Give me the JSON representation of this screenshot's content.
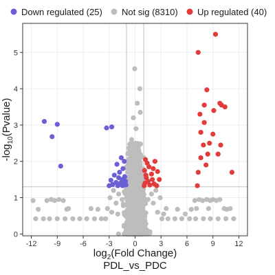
{
  "chart_data": {
    "type": "scatter",
    "title": "PDL_vs_PDC",
    "xlabel": {
      "base": "log",
      "sub": "2",
      "rest": "(Fold Change)"
    },
    "ylabel": {
      "prefix": "-log",
      "sub": "10",
      "rest": "(Pvalue)"
    },
    "xlim": [
      -13,
      13
    ],
    "ylim": [
      -0.05,
      5.8
    ],
    "xticks": [
      -12,
      -9,
      -6,
      -3,
      0,
      3,
      6,
      9,
      12
    ],
    "yticks": [
      0,
      1,
      2,
      3,
      4,
      5
    ],
    "thresholds": {
      "x": [
        -1,
        1
      ],
      "y": 1.3
    },
    "grid": true,
    "legend_position": "top",
    "colors": {
      "down": "#6b5fd6",
      "notsig": "#bdbdbd",
      "up": "#e23b3b",
      "threshold": "#c8c8c8",
      "grid": "#ececec"
    },
    "legend": [
      {
        "key": "down",
        "label": "Down regulated (25)"
      },
      {
        "key": "notsig",
        "label": "Not sig (8310)"
      },
      {
        "key": "up",
        "label": "Up regulated (40)"
      }
    ],
    "series": [
      {
        "key": "down",
        "name": "Down regulated (25)",
        "points": [
          [
            -10.5,
            3.1
          ],
          [
            -9.0,
            3.02
          ],
          [
            -9.6,
            2.68
          ],
          [
            -8.6,
            1.87
          ],
          [
            -3.3,
            2.92
          ],
          [
            -2.7,
            2.95
          ],
          [
            -1.6,
            2.1
          ],
          [
            -2.1,
            1.92
          ],
          [
            -1.4,
            1.8
          ],
          [
            -1.8,
            1.7
          ],
          [
            -2.4,
            1.62
          ],
          [
            -1.2,
            1.58
          ],
          [
            -1.9,
            1.55
          ],
          [
            -1.5,
            1.5
          ],
          [
            -2.8,
            1.48
          ],
          [
            -1.1,
            1.45
          ],
          [
            -2.2,
            1.42
          ],
          [
            -1.7,
            1.4
          ],
          [
            -1.3,
            1.38
          ],
          [
            -2.6,
            1.36
          ],
          [
            -1.05,
            1.35
          ],
          [
            -2.0,
            1.33
          ],
          [
            -1.45,
            1.33
          ],
          [
            -3.0,
            1.33
          ],
          [
            -1.25,
            2.0
          ]
        ]
      },
      {
        "key": "up",
        "name": "Up regulated (40)",
        "points": [
          [
            9.3,
            5.5
          ],
          [
            7.3,
            5.0
          ],
          [
            8.3,
            3.97
          ],
          [
            8.0,
            3.55
          ],
          [
            7.5,
            3.3
          ],
          [
            9.1,
            3.4
          ],
          [
            9.8,
            3.6
          ],
          [
            10.0,
            3.55
          ],
          [
            10.4,
            3.5
          ],
          [
            8.0,
            3.07
          ],
          [
            7.6,
            2.8
          ],
          [
            9.0,
            2.75
          ],
          [
            8.6,
            2.5
          ],
          [
            7.9,
            2.45
          ],
          [
            9.9,
            2.45
          ],
          [
            8.4,
            2.2
          ],
          [
            7.6,
            2.1
          ],
          [
            9.6,
            2.2
          ],
          [
            8.2,
            1.9
          ],
          [
            7.3,
            1.7
          ],
          [
            11.2,
            1.7
          ],
          [
            7.2,
            1.33
          ],
          [
            1.2,
            2.05
          ],
          [
            1.6,
            1.85
          ],
          [
            2.3,
            2.0
          ],
          [
            1.1,
            1.75
          ],
          [
            1.9,
            1.65
          ],
          [
            2.6,
            1.72
          ],
          [
            1.3,
            1.55
          ],
          [
            2.0,
            1.5
          ],
          [
            1.5,
            1.45
          ],
          [
            2.8,
            1.5
          ],
          [
            1.15,
            1.4
          ],
          [
            2.2,
            1.38
          ],
          [
            1.7,
            1.35
          ],
          [
            1.05,
            1.33
          ],
          [
            2.5,
            1.33
          ],
          [
            1.4,
            1.95
          ],
          [
            2.1,
            1.8
          ],
          [
            1.25,
            1.62
          ]
        ]
      },
      {
        "key": "notsig",
        "name": "Not sig (8310)",
        "points": [
          [
            -0.05,
            4.55
          ],
          [
            0.55,
            4.0
          ],
          [
            0.25,
            3.6
          ],
          [
            -0.2,
            3.2
          ],
          [
            0.1,
            2.9
          ],
          [
            -0.4,
            2.6
          ],
          [
            0.6,
            3.35
          ],
          [
            -0.6,
            2.3
          ],
          [
            0.35,
            2.2
          ],
          [
            -11.8,
            0.92
          ],
          [
            -11.2,
            0.68
          ],
          [
            -11.5,
            0.42
          ],
          [
            -10.2,
            0.92
          ],
          [
            -9.7,
            0.95
          ],
          [
            -9.3,
            0.92
          ],
          [
            -8.8,
            0.95
          ],
          [
            -8.3,
            0.92
          ],
          [
            -7.7,
            0.7
          ],
          [
            -7.9,
            0.68
          ],
          [
            -10.6,
            0.42
          ],
          [
            -9.9,
            0.42
          ],
          [
            -9.0,
            0.42
          ],
          [
            -8.1,
            0.42
          ],
          [
            -7.2,
            0.42
          ],
          [
            -6.4,
            0.42
          ],
          [
            -5.6,
            0.42
          ],
          [
            -4.7,
            0.42
          ],
          [
            -3.9,
            0.42
          ],
          [
            -3.4,
            0.42
          ],
          [
            -5.1,
            0.7
          ],
          [
            -4.3,
            0.68
          ],
          [
            -2.7,
            0.6
          ],
          [
            -2.2,
            0.85
          ],
          [
            -2.9,
            1.0
          ],
          [
            -1.9,
            1.1
          ],
          [
            -2.5,
            1.2
          ],
          [
            -1.5,
            0.95
          ],
          [
            -3.2,
            0.7
          ],
          [
            -2.0,
            0.55
          ],
          [
            6.9,
            0.92
          ],
          [
            7.4,
            0.95
          ],
          [
            7.8,
            0.92
          ],
          [
            8.3,
            0.95
          ],
          [
            8.7,
            0.92
          ],
          [
            9.0,
            0.95
          ],
          [
            9.4,
            0.92
          ],
          [
            9.8,
            0.95
          ],
          [
            10.3,
            0.7
          ],
          [
            10.6,
            0.68
          ],
          [
            11.0,
            0.7
          ],
          [
            11.4,
            0.42
          ],
          [
            10.5,
            0.42
          ],
          [
            9.6,
            0.42
          ],
          [
            8.7,
            0.42
          ],
          [
            7.9,
            0.42
          ],
          [
            7.0,
            0.42
          ],
          [
            6.3,
            0.42
          ],
          [
            5.4,
            0.42
          ],
          [
            4.6,
            0.42
          ],
          [
            3.8,
            0.42
          ],
          [
            3.1,
            0.42
          ],
          [
            6.5,
            0.68
          ],
          [
            5.8,
            0.55
          ],
          [
            4.9,
            0.68
          ],
          [
            3.6,
            0.7
          ],
          [
            2.6,
            0.6
          ],
          [
            2.1,
            0.85
          ],
          [
            2.9,
            1.0
          ],
          [
            1.9,
            1.1
          ],
          [
            2.4,
            1.2
          ],
          [
            1.5,
            0.95
          ],
          [
            3.3,
            0.55
          ],
          [
            7.1,
            0.7
          ],
          [
            8.5,
            0.7
          ],
          [
            -0.6,
            1.9
          ],
          [
            0.6,
            1.9
          ],
          [
            -0.8,
            1.55
          ],
          [
            0.85,
            1.6
          ],
          [
            -0.5,
            1.3
          ],
          [
            0.5,
            1.25
          ],
          [
            -0.9,
            1.2
          ],
          [
            0.9,
            1.15
          ],
          [
            -1.0,
            1.0
          ],
          [
            1.0,
            1.0
          ]
        ],
        "density": {
          "center_x": 0,
          "sd_x": 0.55,
          "ymax": 2.5,
          "count": 1400
        }
      }
    ]
  }
}
